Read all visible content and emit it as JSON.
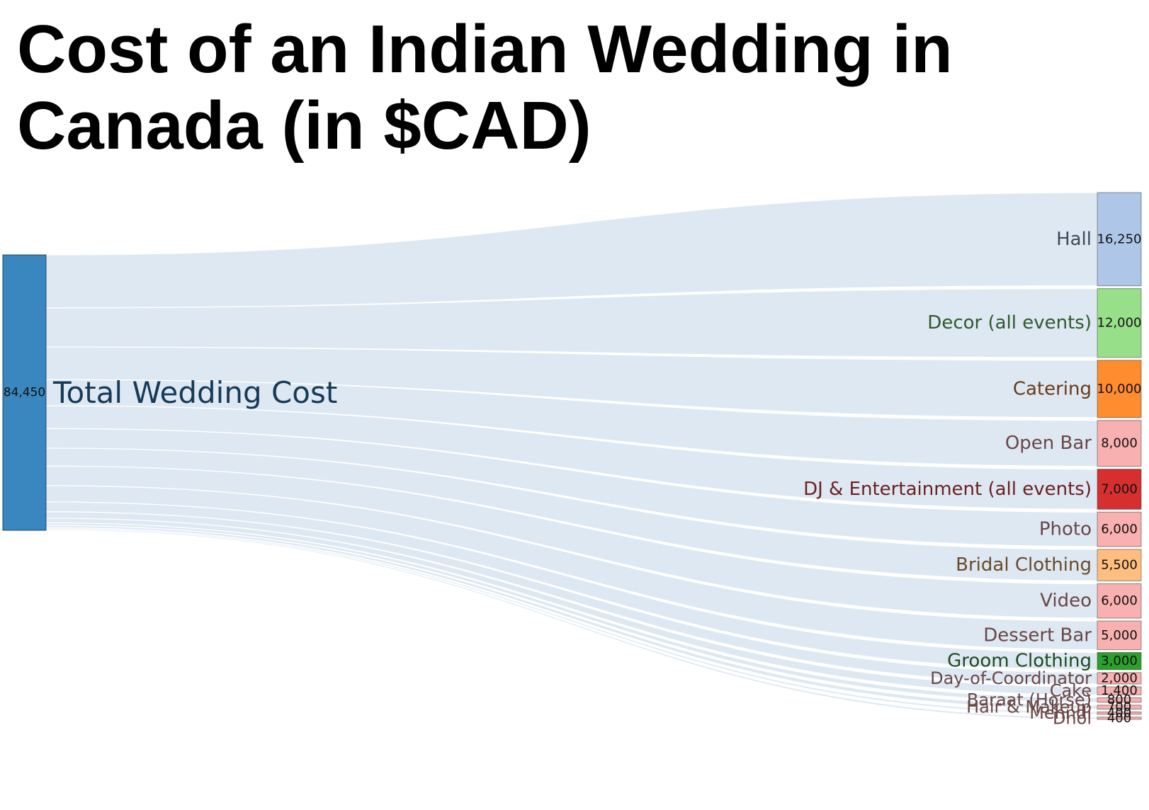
{
  "title": "Cost of an Indian Wedding in Canada (in $CAD)",
  "chart_data": {
    "type": "sankey",
    "title": "Cost of an Indian Wedding in Canada (in $CAD)",
    "source": {
      "label": "Total Wedding Cost",
      "value": 84450,
      "value_label": "84,450",
      "color": "#3a87c0"
    },
    "link_color": "#dbe7f1",
    "targets": [
      {
        "label": "Hall",
        "value": 16250,
        "value_label": "16,250",
        "color": "#aec7e8",
        "text_color": "#3c4a5a"
      },
      {
        "label": "Decor (all events)",
        "value": 12000,
        "value_label": "12,000",
        "color": "#98df8a",
        "text_color": "#2f5a2a"
      },
      {
        "label": "Catering",
        "value": 10000,
        "value_label": "10,000",
        "color": "#ff8c2e",
        "text_color": "#6a3a16"
      },
      {
        "label": "Open Bar",
        "value": 8000,
        "value_label": "8,000",
        "color": "#f8b0b0",
        "text_color": "#6a4646"
      },
      {
        "label": "DJ & Entertainment (all events)",
        "value": 7000,
        "value_label": "7,000",
        "color": "#d62f2f",
        "text_color": "#6b1f1f"
      },
      {
        "label": "Photo",
        "value": 6000,
        "value_label": "6,000",
        "color": "#f8b0b0",
        "text_color": "#6a4646"
      },
      {
        "label": "Bridal Clothing",
        "value": 5500,
        "value_label": "5,500",
        "color": "#ffbe80",
        "text_color": "#6a4a2a"
      },
      {
        "label": "Video",
        "value": 6000,
        "value_label": "6,000",
        "color": "#f8b0b0",
        "text_color": "#6a4646"
      },
      {
        "label": "Dessert Bar",
        "value": 5000,
        "value_label": "5,000",
        "color": "#f8b0b0",
        "text_color": "#6a4646"
      },
      {
        "label": "Groom Clothing",
        "value": 3000,
        "value_label": "3,000",
        "color": "#2ca02c",
        "text_color": "#1f4a1f"
      },
      {
        "label": "Day-of-Coordinator",
        "value": 2000,
        "value_label": "2,000",
        "color": "#f8b0b0",
        "text_color": "#6a4646"
      },
      {
        "label": "Cake",
        "value": 1400,
        "value_label": "1,400",
        "color": "#f8b0b0",
        "text_color": "#6a4646"
      },
      {
        "label": "Baraat (Horse)",
        "value": 800,
        "value_label": "800",
        "color": "#f8b0b0",
        "text_color": "#6a4646"
      },
      {
        "label": "Hair & Makeup",
        "value": 700,
        "value_label": "700",
        "color": "#f8b0b0",
        "text_color": "#6a4646"
      },
      {
        "label": "Mehndi",
        "value": 400,
        "value_label": "400",
        "color": "#f8b0b0",
        "text_color": "#6a4646"
      },
      {
        "label": "Dhol",
        "value": 400,
        "value_label": "400",
        "color": "#f8b0b0",
        "text_color": "#6a4646"
      }
    ]
  }
}
